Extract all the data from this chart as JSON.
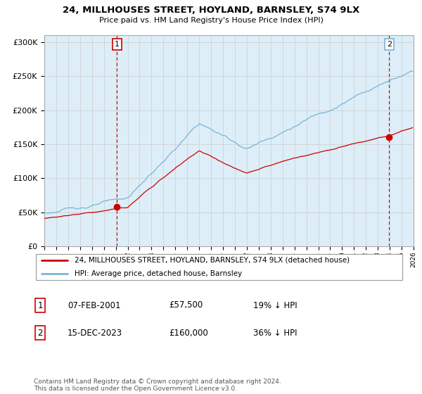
{
  "title": "24, MILLHOUSES STREET, HOYLAND, BARNSLEY, S74 9LX",
  "subtitle": "Price paid vs. HM Land Registry's House Price Index (HPI)",
  "ylim": [
    0,
    310000
  ],
  "yticks": [
    0,
    50000,
    100000,
    150000,
    200000,
    250000,
    300000
  ],
  "ytick_labels": [
    "£0",
    "£50K",
    "£100K",
    "£150K",
    "£200K",
    "£250K",
    "£300K"
  ],
  "x_start_year": 1995,
  "x_end_year": 2026,
  "hpi_color": "#7ab4d8",
  "hpi_fill_color": "#ddeef8",
  "price_color": "#cc0000",
  "vline_color": "#cc0000",
  "sale1_year": 2001.1,
  "sale1_value": 57500,
  "sale2_year": 2023.96,
  "sale2_value": 160000,
  "sale1_label": "1",
  "sale2_label": "2",
  "legend_label_price": "24, MILLHOUSES STREET, HOYLAND, BARNSLEY, S74 9LX (detached house)",
  "legend_label_hpi": "HPI: Average price, detached house, Barnsley",
  "info1_num": "1",
  "info1_date": "07-FEB-2001",
  "info1_price": "£57,500",
  "info1_hpi": "19% ↓ HPI",
  "info2_num": "2",
  "info2_date": "15-DEC-2023",
  "info2_price": "£160,000",
  "info2_hpi": "36% ↓ HPI",
  "footnote": "Contains HM Land Registry data © Crown copyright and database right 2024.\nThis data is licensed under the Open Government Licence v3.0.",
  "background_color": "#ffffff",
  "grid_color": "#cccccc"
}
